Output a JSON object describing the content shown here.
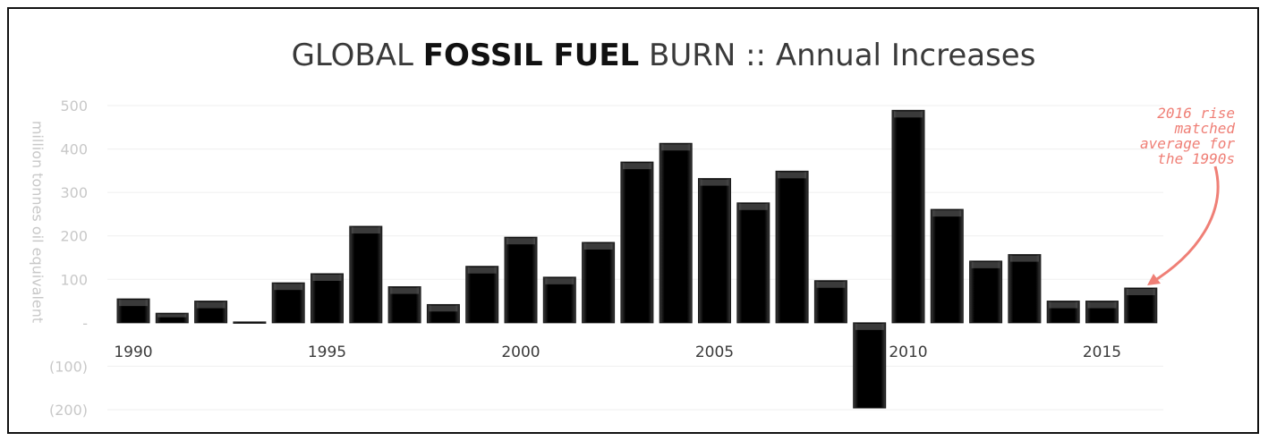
{
  "chart_data": {
    "type": "bar",
    "title_parts": [
      "GLOBAL ",
      "FOSSIL FUEL",
      " BURN :: Annual Increases"
    ],
    "ylabel": "million tonnes oil equivalent",
    "xlabel": "",
    "ylim": [
      -200,
      500
    ],
    "yticks": [
      {
        "value": 500,
        "label": "500"
      },
      {
        "value": 400,
        "label": "400"
      },
      {
        "value": 300,
        "label": "300"
      },
      {
        "value": 200,
        "label": "200"
      },
      {
        "value": 100,
        "label": "100"
      },
      {
        "value": 0,
        "label": "-"
      },
      {
        "value": -100,
        "label": "(100)"
      },
      {
        "value": -200,
        "label": "(200)"
      }
    ],
    "xtick_labels": [
      "1990",
      "1995",
      "2000",
      "2005",
      "2010",
      "2015"
    ],
    "grid": true,
    "categories": [
      "1990",
      "1991",
      "1992",
      "1993",
      "1994",
      "1995",
      "1996",
      "1997",
      "1998",
      "1999",
      "2000",
      "2001",
      "2002",
      "2003",
      "2004",
      "2005",
      "2006",
      "2007",
      "2008",
      "2009",
      "2010",
      "2011",
      "2012",
      "2013",
      "2014",
      "2015",
      "2016"
    ],
    "values": [
      55,
      22,
      50,
      2,
      92,
      113,
      222,
      83,
      42,
      130,
      197,
      105,
      185,
      370,
      413,
      332,
      276,
      349,
      97,
      -196,
      489,
      261,
      142,
      157,
      50,
      50,
      80
    ],
    "annotation": "2016 rise\nmatched\naverage for\nthe 1990s",
    "colors": {
      "bar": "#000000",
      "annotation": "#ef7f76",
      "tick_text": "#c8c8c8",
      "axis_label_text": "#3a3a3a"
    }
  }
}
